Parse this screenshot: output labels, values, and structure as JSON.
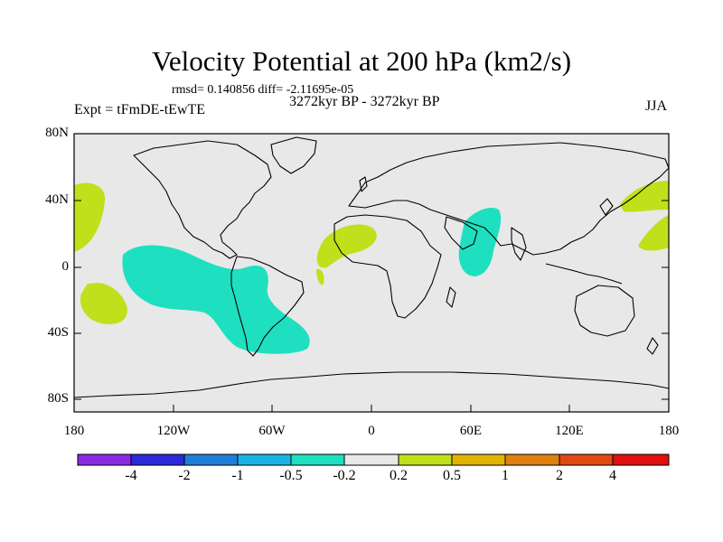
{
  "title": "Velocity Potential at 200 hPa (km2/s)",
  "stats": "rmsd= 0.140856 diff= -2.11695e-05",
  "experiment": "Expt = tFmDE-tEwTE",
  "period": "3272kyr BP - 3272kyr BP",
  "season": "JJA",
  "y_ticks": [
    "80N",
    "40N",
    "0",
    "40S",
    "80S"
  ],
  "x_ticks": [
    "180",
    "120W",
    "60W",
    "0",
    "60E",
    "120E",
    "180"
  ],
  "colorbar": {
    "colors": [
      "#8a2be2",
      "#2a2ad8",
      "#1e7fd8",
      "#18b4e8",
      "#1ee0c0",
      "#e8e8e8",
      "#bfe01a",
      "#e0b400",
      "#e08010",
      "#e04a10",
      "#e01010"
    ],
    "labels": [
      "-4",
      "-2",
      "-1",
      "-0.5",
      "-0.2",
      "0.2",
      "0.5",
      "1",
      "2",
      "4"
    ]
  },
  "colors": {
    "ocean_bg": "#e8e8e8",
    "negative_fill": "#1ee0c0",
    "positive_fill": "#bfe01a",
    "coast": "#000000"
  }
}
